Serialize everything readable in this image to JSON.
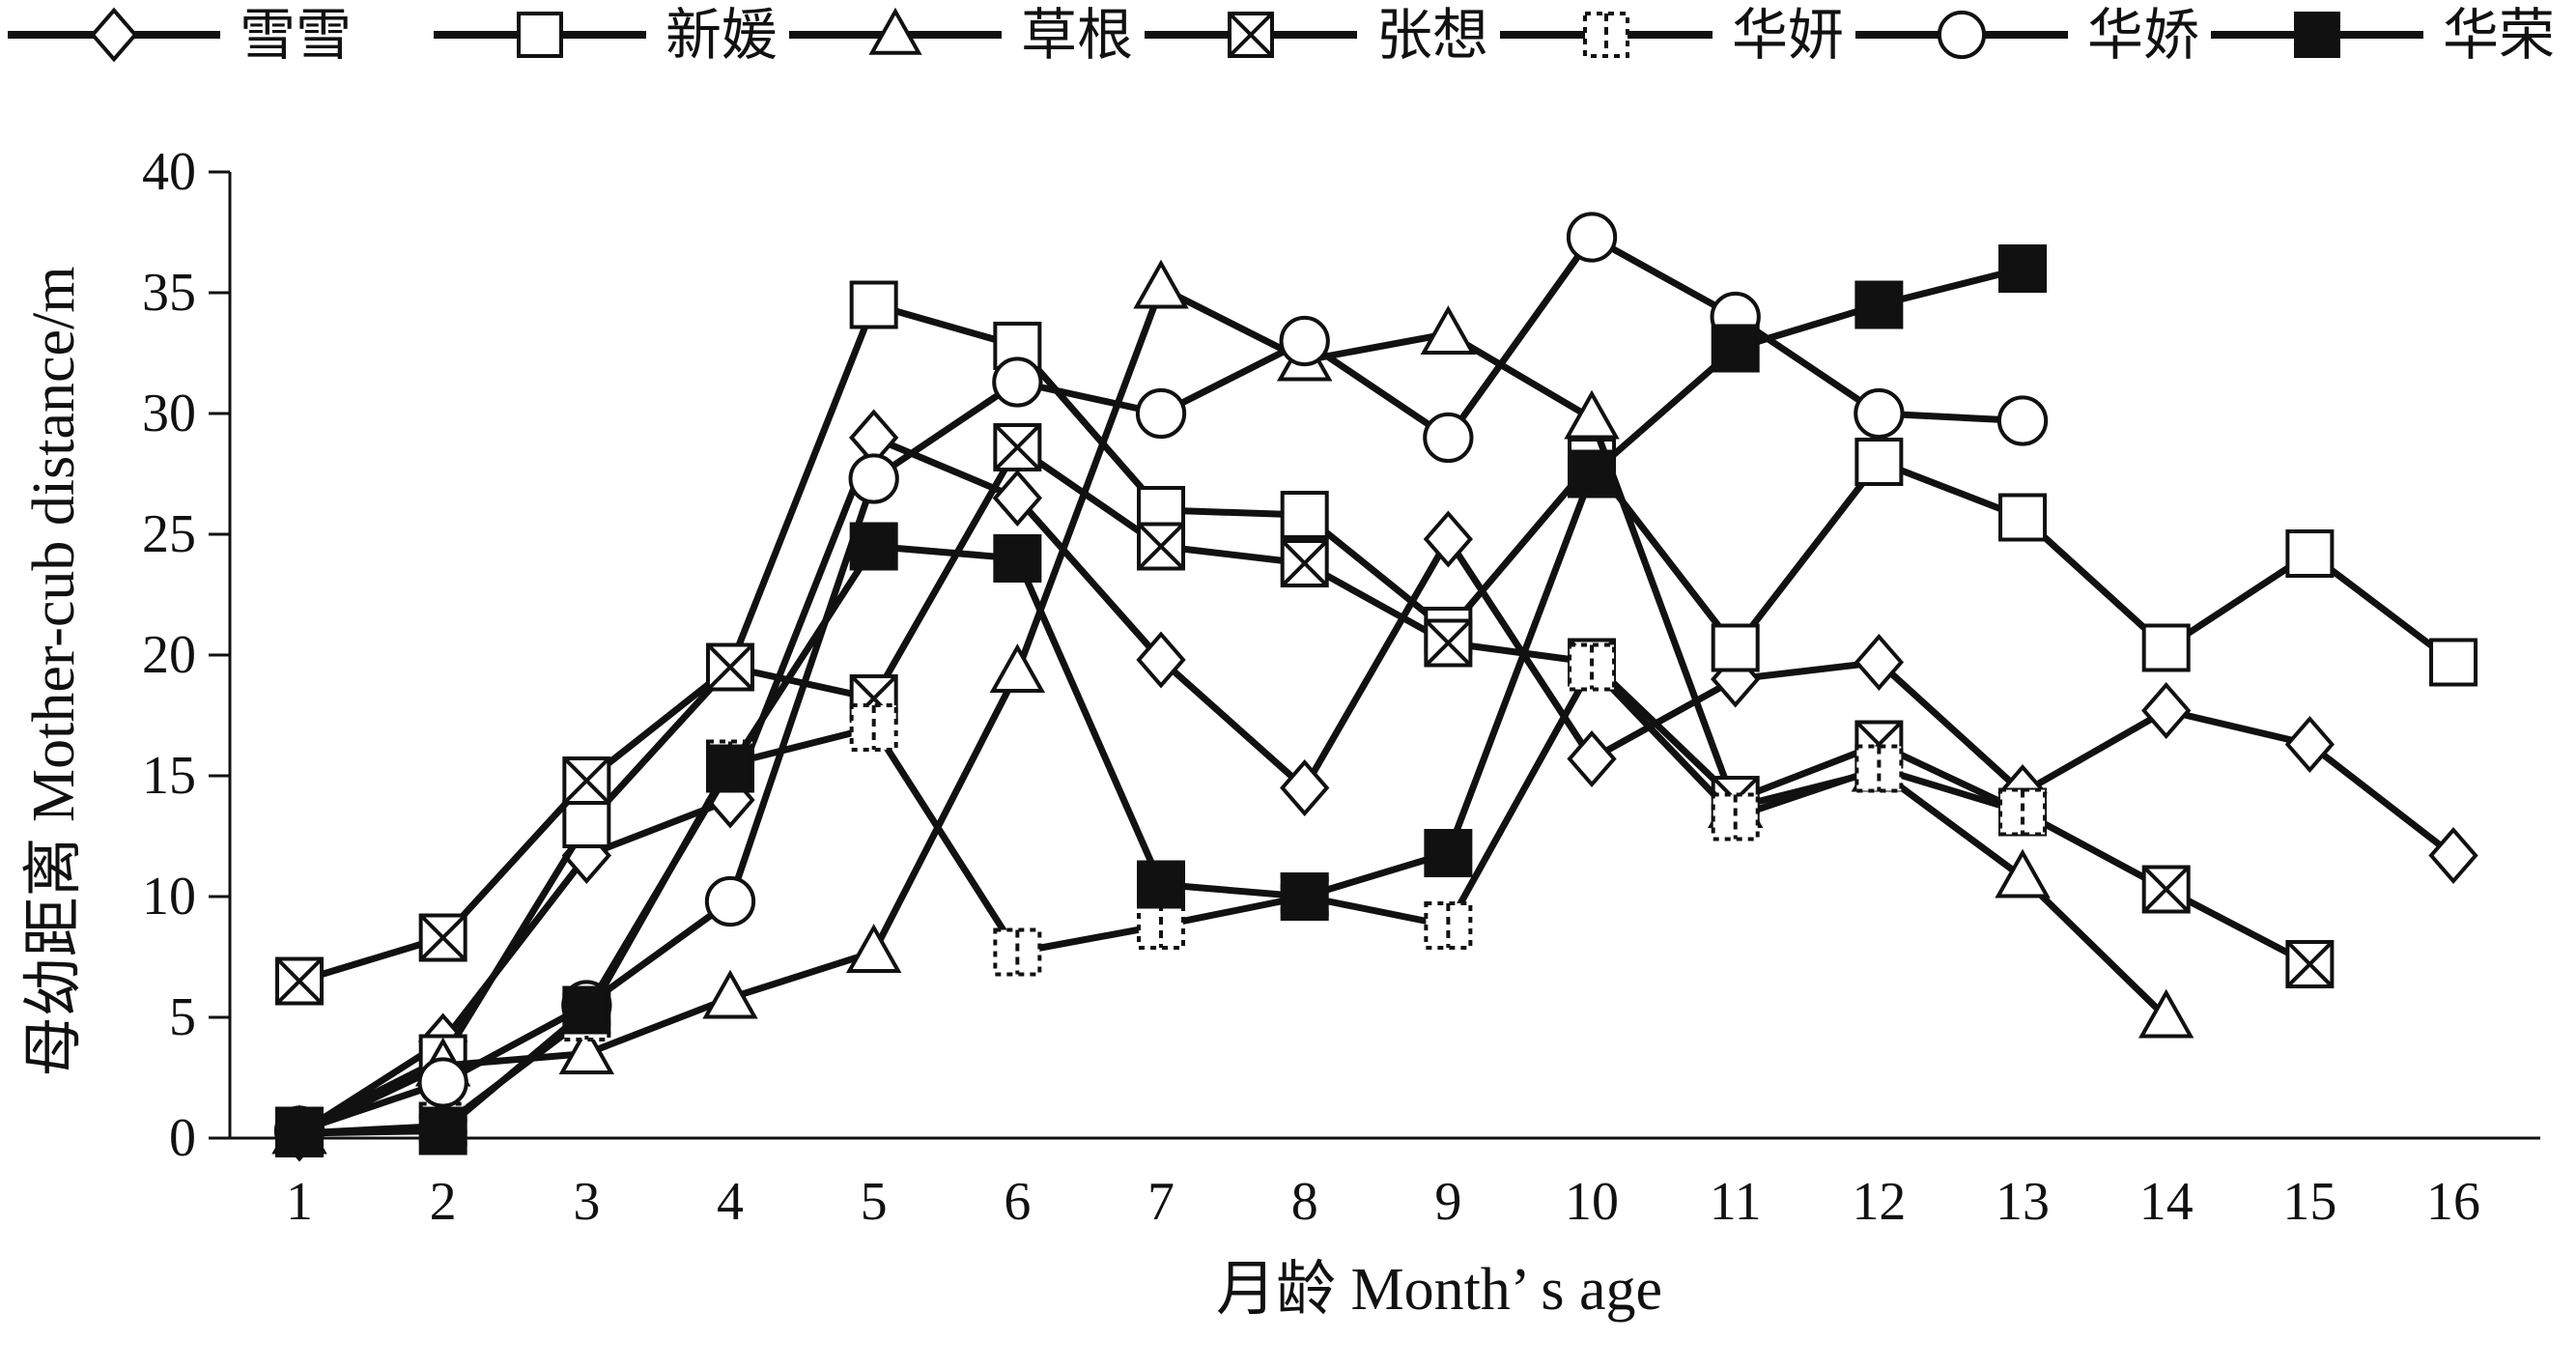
{
  "chart_data": {
    "type": "line",
    "title": "",
    "xlabel": "月龄 Month’ s age",
    "ylabel": "母幼距离 Mother-cub distance/m",
    "ylim": [
      0,
      40
    ],
    "yticks": [
      0,
      5,
      10,
      15,
      20,
      25,
      30,
      35,
      40
    ],
    "xticks": [
      1,
      2,
      3,
      4,
      5,
      6,
      7,
      8,
      9,
      10,
      11,
      12,
      13,
      14,
      15,
      16
    ],
    "grid": false,
    "legend_position": "top",
    "series": [
      {
        "name": "雪雪",
        "marker": "diamond",
        "x": [
          1,
          2,
          3,
          4,
          5,
          6,
          7,
          8,
          9,
          10,
          11,
          12,
          13,
          14,
          15,
          16
        ],
        "y": [
          0.2,
          4.0,
          11.7,
          14.0,
          29.0,
          26.5,
          19.8,
          14.5,
          24.8,
          15.7,
          19.0,
          19.7,
          14.3,
          17.7,
          16.3,
          11.7
        ]
      },
      {
        "name": "新媛",
        "marker": "square",
        "x": [
          1,
          2,
          3,
          4,
          5,
          6,
          7,
          8,
          9,
          10,
          11,
          12,
          13,
          14,
          15,
          16
        ],
        "y": [
          0.3,
          3.3,
          13.0,
          19.5,
          34.5,
          32.8,
          26.0,
          25.8,
          21.0,
          28.0,
          20.3,
          28.0,
          25.7,
          20.3,
          24.2,
          19.7
        ]
      },
      {
        "name": "草根",
        "marker": "triangle",
        "x": [
          1,
          2,
          3,
          4,
          5,
          6,
          7,
          8,
          9,
          10,
          11,
          12,
          13,
          14
        ],
        "y": [
          0.2,
          3.0,
          3.5,
          5.8,
          7.7,
          19.3,
          35.2,
          32.2,
          33.3,
          29.8,
          13.7,
          15.2,
          10.8,
          5.0
        ]
      },
      {
        "name": "张想",
        "marker": "x-box",
        "x": [
          1,
          2,
          3,
          4,
          5,
          6,
          7,
          8,
          9,
          10,
          11,
          12,
          13,
          14,
          15
        ],
        "y": [
          6.5,
          8.3,
          14.8,
          19.5,
          18.2,
          28.6,
          24.5,
          23.8,
          20.5,
          19.7,
          14.0,
          16.3,
          13.5,
          10.3,
          7.2
        ]
      },
      {
        "name": "华妍",
        "marker": "dash-box",
        "x": [
          1,
          2,
          3,
          4,
          5,
          6,
          7,
          8,
          9,
          10,
          11,
          12,
          13
        ],
        "y": [
          0.2,
          0.5,
          5.0,
          15.5,
          17.0,
          7.7,
          8.8,
          10.0,
          8.8,
          19.5,
          13.3,
          15.3,
          13.5
        ]
      },
      {
        "name": "华娇",
        "marker": "circle",
        "x": [
          1,
          2,
          3,
          4,
          5,
          6,
          7,
          8,
          9,
          10,
          11,
          12,
          13
        ],
        "y": [
          0.3,
          2.3,
          5.5,
          9.8,
          27.3,
          31.3,
          30.0,
          33.0,
          29.0,
          37.3,
          34.0,
          30.0,
          29.7
        ]
      },
      {
        "name": "华荣",
        "marker": "filled-square",
        "x": [
          1,
          2,
          3,
          4,
          5,
          6,
          7,
          8,
          9,
          10,
          11,
          12,
          13
        ],
        "y": [
          0.2,
          0.3,
          5.3,
          15.3,
          24.5,
          24.0,
          10.5,
          10.0,
          11.8,
          27.5,
          32.7,
          34.5,
          36.0
        ]
      }
    ],
    "colors": {
      "line": "#111111",
      "background": "#ffffff"
    }
  }
}
